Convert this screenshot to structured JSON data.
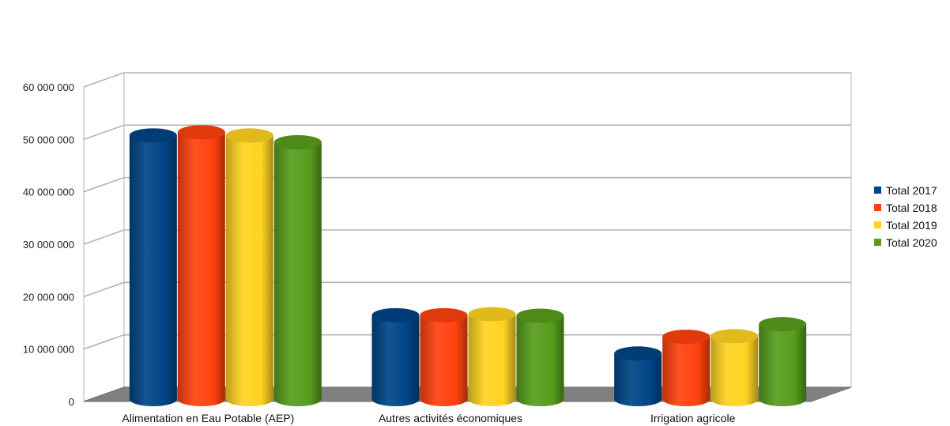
{
  "chart_data": {
    "type": "bar",
    "title": "",
    "xlabel": "",
    "ylabel": "",
    "ylim": [
      0,
      60000000
    ],
    "yticks": [
      0,
      10000000,
      20000000,
      30000000,
      40000000,
      50000000,
      60000000
    ],
    "ytick_labels": [
      "0",
      "10 000 000",
      "20 000 000",
      "30 000 000",
      "40 000 000",
      "50 000 000",
      "60 000 000"
    ],
    "categories": [
      "Alimentation en Eau Potable (AEP)",
      "Autres activités économiques",
      "Irrigation agricole"
    ],
    "series": [
      {
        "name": "Total  2017",
        "color": "#004586",
        "values": [
          50300000,
          16000000,
          8700000
        ]
      },
      {
        "name": "Total  2018",
        "color": "#ff420e",
        "values": [
          50900000,
          16000000,
          11900000
        ]
      },
      {
        "name": "Total 2019",
        "color": "#ffd320",
        "values": [
          50300000,
          16200000,
          12000000
        ]
      },
      {
        "name": "Total  2020",
        "color": "#579d1c",
        "values": [
          49000000,
          15900000,
          14300000
        ]
      }
    ],
    "grid": true,
    "legend": "right",
    "style": "3d-cylinder"
  }
}
